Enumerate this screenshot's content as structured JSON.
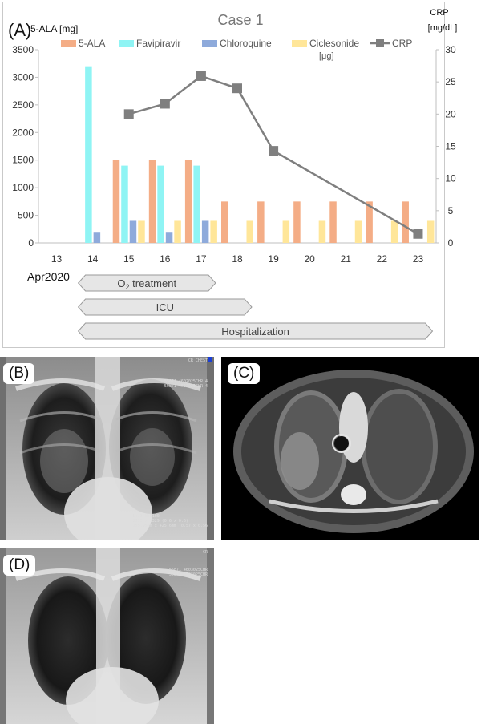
{
  "panel_a": {
    "label": "(A)",
    "title": "Case 1",
    "left_axis_title": "5-ALA [mg]",
    "right_axis_title_line1": "CRP",
    "right_axis_title_line2": "[mg/dL]",
    "period_label": "Apr2020",
    "ciclesonide_unit": "[μg]",
    "o2_prefix": "O",
    "o2_sub": "2",
    "o2_suffix": " treatment",
    "timelines": [
      {
        "label": "ICU",
        "start": "14",
        "end": "18"
      },
      {
        "label": "Hospitalization",
        "start": "14",
        "end": "23"
      }
    ],
    "o2_timeline": {
      "start": "14",
      "end": "17"
    }
  },
  "chart_data": {
    "type": "bar",
    "title": "Case 1",
    "categories": [
      "13",
      "14",
      "15",
      "16",
      "17",
      "18",
      "19",
      "20",
      "21",
      "22",
      "23"
    ],
    "ylabel": "5-ALA [mg]",
    "y2label": "CRP [mg/dL]",
    "ylim": [
      0,
      3500
    ],
    "yticks": [
      0,
      500,
      1000,
      1500,
      2000,
      2500,
      3000,
      3500
    ],
    "y2lim": [
      0,
      30
    ],
    "y2ticks": [
      0,
      5,
      10,
      15,
      20,
      25,
      30
    ],
    "legend_position": "top",
    "series": [
      {
        "name": "5-ALA",
        "color": "#f4ad86",
        "values": [
          0,
          0,
          1500,
          1500,
          1500,
          750,
          750,
          750,
          750,
          750,
          750
        ]
      },
      {
        "name": "Favipiravir",
        "color": "#8ff4f4",
        "values": [
          0,
          3200,
          1400,
          1400,
          1400,
          0,
          0,
          0,
          0,
          0,
          0
        ]
      },
      {
        "name": "Chloroquine",
        "color": "#8eaadb",
        "values": [
          0,
          200,
          400,
          200,
          400,
          0,
          0,
          0,
          0,
          0,
          0
        ]
      },
      {
        "name": "Ciclesonide",
        "color": "#ffe699",
        "values": [
          0,
          0,
          400,
          400,
          400,
          400,
          400,
          400,
          400,
          400,
          400
        ]
      }
    ],
    "line_series": {
      "name": "CRP",
      "color": "#7f7f7f",
      "axis": "right",
      "points": [
        [
          "15",
          20.0
        ],
        [
          "16",
          21.6
        ],
        [
          "17",
          25.9
        ],
        [
          "18",
          24.0
        ],
        [
          "19",
          14.3
        ],
        [
          "23",
          1.4
        ]
      ]
    }
  },
  "panel_b": {
    "label": "(B)",
    "corner_text": "CR CHEST",
    "id_text": "55871 4602025CHR 4\n55871 4602025CHR 4",
    "info_text": "L:13 W:9100\n2373 x 3329 (0.6 x 0.6)\n355.95mm x 425.6mm  0.57 x 0.56"
  },
  "panel_c": {
    "label": "(C)"
  },
  "panel_d": {
    "label": "(D)",
    "corner_text": "CR",
    "id_text": "55871 4603025CHR\n55871 4603025CHR"
  },
  "colors": {
    "border": "#c9c9c9",
    "timeline_fill": "#e6e6e6",
    "timeline_stroke": "#9a9a9a"
  }
}
